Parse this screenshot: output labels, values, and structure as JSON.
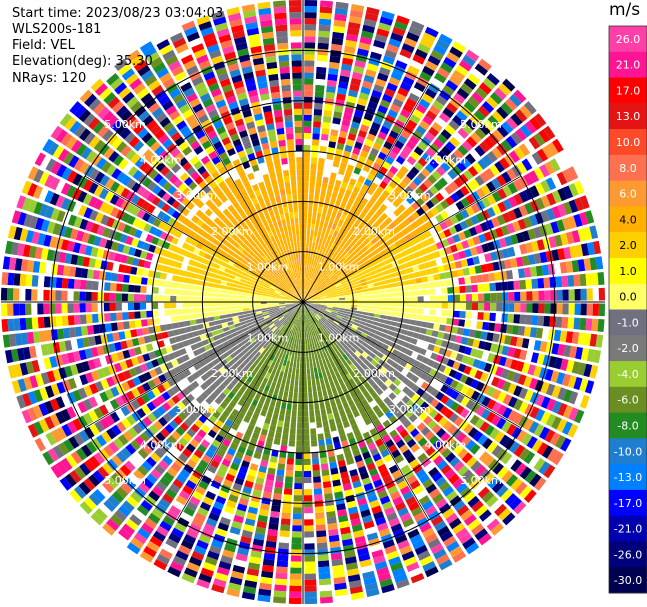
{
  "header": {
    "start_time": "Start time: 2023/08/23 03:04:03",
    "instrument": "WLS200s-181",
    "field": "Field: VEL",
    "elevation": "Elevation(deg): 35.30",
    "nrays": "NRays: 120"
  },
  "colorbar": {
    "unit": "m/s",
    "ticks": [
      "26.0",
      "21.0",
      "17.0",
      "13.0",
      "10.0",
      "8.0",
      "6.0",
      "4.0",
      "2.0",
      "1.0",
      "0.0",
      "-1.0",
      "-2.0",
      "-4.0",
      "-6.0",
      "-8.0",
      "-10.0",
      "-13.0",
      "-17.0",
      "-21.0",
      "-26.0",
      "-30.0"
    ],
    "colors": [
      "#ff3fa8",
      "#ff1493",
      "#ff0000",
      "#e51414",
      "#ff4a2a",
      "#ff7050",
      "#ff9a33",
      "#ffb000",
      "#ffd000",
      "#ffff00",
      "#ffff66",
      "#707080",
      "#7a7a7a",
      "#9acd32",
      "#6b8e23",
      "#228b22",
      "#1e7fd0",
      "#0080ff",
      "#0000ff",
      "#0000b0",
      "#00007a",
      "#000050"
    ]
  },
  "chart_data": {
    "type": "heatmap",
    "projection": "polar PPI",
    "field": "VEL",
    "unit": "m/s",
    "nrays": 120,
    "elevation_deg": 35.3,
    "range_rings_km": [
      1.0,
      2.0,
      3.0,
      4.0,
      5.0
    ],
    "ring_labels": [
      "1.00km",
      "2.00km",
      "3.00km",
      "4.00km",
      "5.00km"
    ],
    "max_range_km": 6.0,
    "spoke_azimuths_deg": [
      0,
      30,
      60,
      90,
      120,
      150,
      180,
      210,
      240,
      270,
      300,
      330
    ],
    "clean_signal_range_km": 3.0,
    "sectors": [
      {
        "azimuth_from": 300,
        "azimuth_to": 60,
        "velocity": 4.0
      },
      {
        "azimuth_from": 60,
        "azimuth_to": 80,
        "velocity": 2.0
      },
      {
        "azimuth_from": 280,
        "azimuth_to": 300,
        "velocity": 2.0
      },
      {
        "azimuth_from": 80,
        "azimuth_to": 100,
        "velocity": 0.0
      },
      {
        "azimuth_from": 260,
        "azimuth_to": 280,
        "velocity": 0.0
      },
      {
        "azimuth_from": 100,
        "azimuth_to": 140,
        "velocity": -2.0
      },
      {
        "azimuth_from": 220,
        "azimuth_to": 260,
        "velocity": -2.0
      },
      {
        "azimuth_from": 140,
        "azimuth_to": 220,
        "velocity": -6.0
      }
    ],
    "noise_beyond_km": 3.0,
    "colorbar_range": [
      -30.0,
      26.0
    ]
  }
}
